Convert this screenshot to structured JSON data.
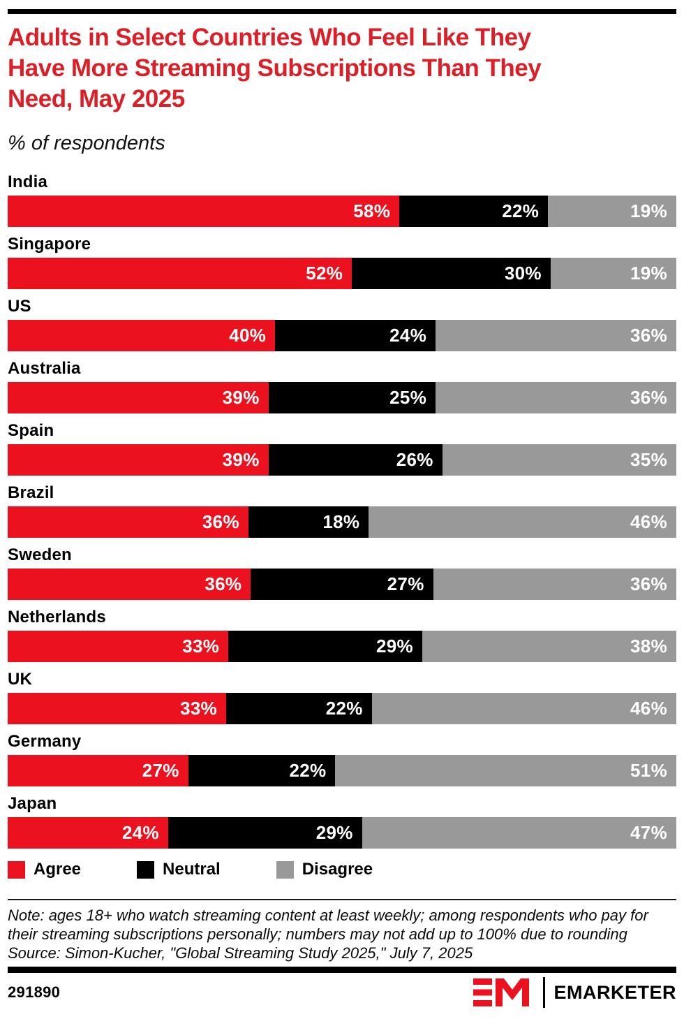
{
  "page": {
    "title": "Adults in Select Countries Who Feel Like They\nHave More Streaming Subscriptions Than They\nNeed, May 2025",
    "subtitle": "% of respondents",
    "note": "Note: ages 18+ who watch streaming content at least weekly; among respondents who pay for their streaming subscriptions personally; numbers may not add up to 100% due to rounding",
    "source": "Source: Simon-Kucher, \"Global Streaming Study 2025,\" July 7, 2025",
    "chart_id": "291890",
    "brand_name": "EMARKETER"
  },
  "colors": {
    "title_red": "#DC1E26",
    "agree_red": "#EC111F",
    "neutral_black": "#000000",
    "disagree_gray": "#999999"
  },
  "chart_data": {
    "type": "bar",
    "orientation": "horizontal-stacked",
    "title": "Adults in Select Countries Who Feel Like They Have More Streaming Subscriptions Than They Need, May 2025",
    "subtitle": "% of respondents",
    "value_suffix": "%",
    "normalized_rows": true,
    "legend_position": "bottom",
    "categories": [
      "India",
      "Singapore",
      "US",
      "Australia",
      "Spain",
      "Brazil",
      "Sweden",
      "Netherlands",
      "UK",
      "Germany",
      "Japan"
    ],
    "series": [
      {
        "name": "Agree",
        "color": "#EC111F",
        "values": [
          58,
          52,
          40,
          39,
          39,
          36,
          36,
          33,
          33,
          27,
          24
        ]
      },
      {
        "name": "Neutral",
        "color": "#000000",
        "values": [
          22,
          30,
          24,
          25,
          26,
          18,
          27,
          29,
          22,
          22,
          29
        ]
      },
      {
        "name": "Disagree",
        "color": "#999999",
        "values": [
          19,
          19,
          36,
          36,
          35,
          46,
          36,
          38,
          46,
          51,
          47
        ]
      }
    ]
  }
}
